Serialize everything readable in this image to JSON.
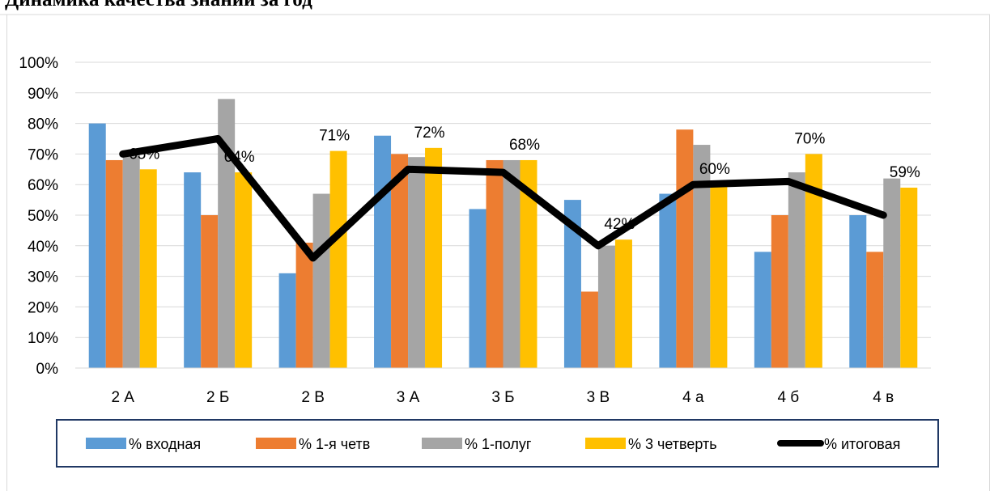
{
  "chart_data": {
    "type": "bar",
    "title": "Динамика качества знаний за год",
    "categories": [
      "2 А",
      "2 Б",
      "2 В",
      "3 А",
      "3 Б",
      "3 В",
      "4 а",
      "4 б",
      "4 в"
    ],
    "yticks": [
      "0%",
      "10%",
      "20%",
      "30%",
      "40%",
      "50%",
      "60%",
      "70%",
      "80%",
      "90%",
      "100%"
    ],
    "ylim": [
      0,
      100
    ],
    "grid": true,
    "legend_position": "bottom",
    "series": [
      {
        "name": "% входная",
        "type": "bar",
        "color": "#5B9BD5",
        "values": [
          80,
          64,
          31,
          76,
          52,
          55,
          57,
          38,
          50
        ]
      },
      {
        "name": "% 1-я четв",
        "type": "bar",
        "color": "#ED7D31",
        "values": [
          68,
          50,
          41,
          70,
          68,
          25,
          78,
          50,
          38
        ]
      },
      {
        "name": "% 1-полуг",
        "type": "bar",
        "color": "#A5A5A5",
        "values": [
          70,
          88,
          57,
          69,
          68,
          40,
          73,
          64,
          62
        ]
      },
      {
        "name": "% 3 четверть",
        "type": "bar",
        "color": "#FFC000",
        "values": [
          65,
          64,
          71,
          72,
          68,
          42,
          60,
          70,
          59
        ],
        "data_labels": [
          "65%",
          "64%",
          "71%",
          "72%",
          "68%",
          "42%",
          "60%",
          "70%",
          "59%"
        ]
      },
      {
        "name": "% итоговая",
        "type": "line",
        "color": "#000000",
        "values": [
          70,
          75,
          36,
          65,
          64,
          40,
          60,
          61,
          50
        ]
      }
    ]
  }
}
